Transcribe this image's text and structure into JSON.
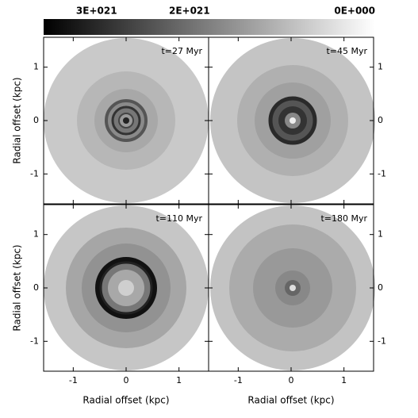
{
  "colorbar": {
    "lim": [
      3.57e+21,
      0
    ],
    "ticks": [
      {
        "value": 3e+21,
        "label": "3E+021"
      },
      {
        "value": 2e+21,
        "label": "2E+021"
      },
      {
        "value": 0,
        "label": "0E+000"
      }
    ]
  },
  "chart_data": [
    {
      "type": "image",
      "label": "t=27 Myr",
      "ylabel": "Radial offset (kpc)",
      "xlim": [
        -1.56,
        1.56
      ],
      "ylim": [
        -1.56,
        1.56
      ],
      "xticks": [
        -1,
        0,
        1
      ],
      "yticks": [
        -1,
        0,
        1
      ]
    },
    {
      "type": "image",
      "label": "t=45 Myr",
      "xlim": [
        -1.56,
        1.56
      ],
      "ylim": [
        -1.56,
        1.56
      ],
      "xticks": [
        -1,
        0,
        1
      ],
      "yticks": [
        -1,
        0,
        1
      ]
    },
    {
      "type": "image",
      "label": "t=110 Myr",
      "xlabel": "Radial offset (kpc)",
      "ylabel": "Radial offset (kpc)",
      "xlim": [
        -1.56,
        1.56
      ],
      "ylim": [
        -1.56,
        1.56
      ],
      "xticks": [
        -1,
        0,
        1
      ],
      "yticks": [
        -1,
        0,
        1
      ]
    },
    {
      "type": "image",
      "label": "t=180 Myr",
      "xlabel": "Radial offset (kpc)",
      "xlim": [
        -1.56,
        1.56
      ],
      "ylim": [
        -1.56,
        1.56
      ],
      "xticks": [
        -1,
        0,
        1
      ],
      "yticks": [
        -1,
        0,
        1
      ]
    }
  ]
}
